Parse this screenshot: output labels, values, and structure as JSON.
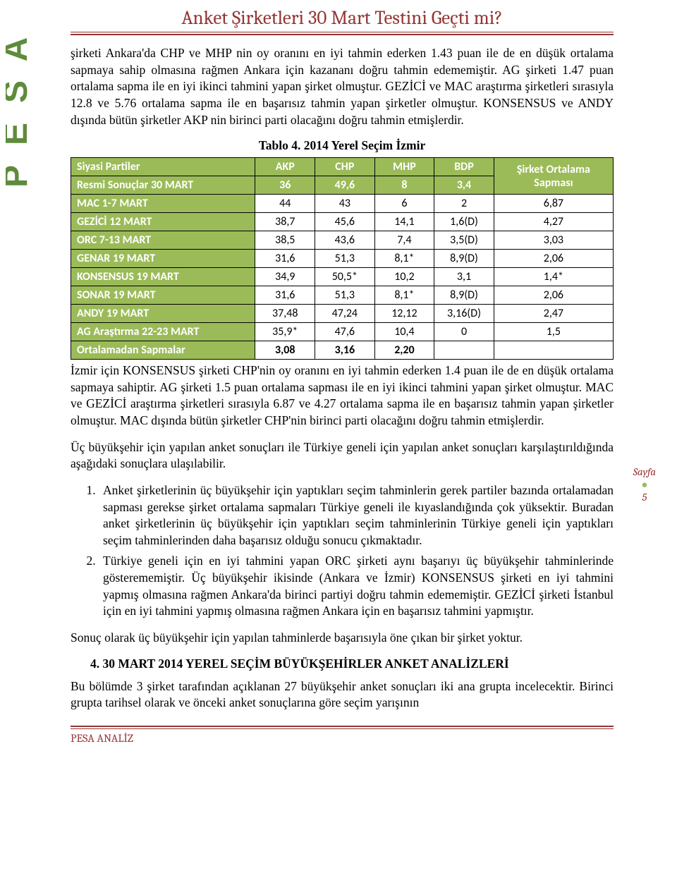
{
  "title": "Anket Şirketleri 30 Mart Testini Geçti mi?",
  "para1": "şirketi Ankara'da CHP ve MHP nin oy oranını en iyi tahmin ederken 1.43 puan ile de en düşük ortalama sapmaya sahip olmasına rağmen Ankara için kazananı doğru tahmin edememiştir. AG şirketi 1.47 puan ortalama sapma ile en iyi ikinci tahmini yapan şirket olmuştur. GEZİCİ ve MAC araştırma şirketleri sırasıyla 12.8 ve 5.76 ortalama sapma ile en başarısız tahmin yapan şirketler olmuştur. KONSENSUS ve ANDY dışında bütün şirketler AKP nin birinci parti olacağını doğru tahmin etmişlerdir.",
  "table_caption": "Tablo 4. 2014 Yerel Seçim İzmir",
  "table": {
    "header_row1": [
      "Siyasi Partiler",
      "AKP",
      "CHP",
      "MHP",
      "BDP",
      "Şirket Ortalama Sapması"
    ],
    "header_row2": [
      "Resmi Sonuçlar 30 MART",
      "36",
      "49,6",
      "8",
      "3,4"
    ],
    "rows": [
      [
        "MAC 1-7 MART",
        "44",
        "43",
        "6",
        "2",
        "6,87"
      ],
      [
        "GEZİCİ 12 MART",
        "38,7",
        "45,6",
        "14,1",
        "1,6(D)",
        "4,27"
      ],
      [
        "ORC 7-13 MART",
        "38,5",
        "43,6",
        "7,4",
        "3,5(D)",
        "3,03"
      ],
      [
        "GENAR 19 MART",
        "31,6",
        "51,3",
        "8,1*",
        "8,9(D)",
        "2,06"
      ],
      [
        "KONSENSUS 19 MART",
        "34,9",
        "50,5*",
        "10,2",
        "3,1",
        "1,4*"
      ],
      [
        "SONAR 19 MART",
        "31,6",
        "51,3",
        "8,1*",
        "8,9(D)",
        "2,06"
      ],
      [
        "ANDY 19 MART",
        "37,48",
        "47,24",
        "12,12",
        "3,16(D)",
        "2,47"
      ],
      [
        "AG Araştırma 22-23 MART",
        "35,9*",
        "47,6",
        "10,4",
        "0",
        "1,5"
      ],
      [
        "Ortalamadan Sapmalar",
        "3,08",
        "3,16",
        "2,20",
        "",
        ""
      ]
    ],
    "colors": {
      "header_bg": "#9bbb59",
      "header_fg": "#ffffff",
      "border": "#000000"
    },
    "col_widths_pct": [
      34,
      11,
      11,
      11,
      11,
      22
    ]
  },
  "para2": "İzmir için KONSENSUS şirketi CHP'nin oy oranını en iyi tahmin ederken 1.4 puan ile de en düşük ortalama sapmaya sahiptir. AG şirketi 1.5 puan ortalama sapması ile en iyi ikinci tahmini yapan şirket olmuştur. MAC ve GEZİCİ araştırma şirketleri sırasıyla 6.87 ve 4.27 ortalama sapma ile en başarısız tahmin yapan şirketler olmuştur. MAC dışında bütün şirketler CHP'nin birinci parti olacağını doğru tahmin etmişlerdir.",
  "para3": "Üç büyükşehir için yapılan anket sonuçları ile Türkiye geneli için yapılan anket sonuçları karşılaştırıldığında aşağıdaki sonuçlara ulaşılabilir.",
  "list": [
    "Anket şirketlerinin üç büyükşehir için yaptıkları seçim tahminlerin gerek partiler bazında ortalamadan sapması gerekse şirket ortalama sapmaları Türkiye geneli ile kıyaslandığında çok yüksektir. Buradan anket şirketlerinin üç büyükşehir için yaptıkları seçim tahminlerinin Türkiye geneli için yaptıkları seçim tahminlerinden daha başarısız olduğu sonucu çıkmaktadır.",
    "Türkiye geneli için en iyi tahmini yapan ORC şirketi aynı başarıyı üç büyükşehir tahminlerinde gösterememiştir. Üç büyükşehir ikisinde (Ankara ve İzmir) KONSENSUS şirketi en iyi tahmini yapmış olmasına rağmen Ankara'da birinci partiyi doğru tahmin edememiştir. GEZİCİ şirketi İstanbul için en iyi tahmini yapmış olmasına rağmen Ankara için en başarısız tahmini yapmıştır."
  ],
  "para4": "Sonuç olarak üç büyükşehir için yapılan tahminlerde başarısıyla öne çıkan bir şirket yoktur.",
  "section_head": "4.   30 MART 2014 YEREL SEÇİM BÜYÜKŞEHİRLER ANKET ANALİZLERİ",
  "para5": "Bu bölümde 3 şirket tarafından açıklanan 27 büyükşehir anket sonuçları iki ana grupta incelecektir. Birinci grupta tarihsel olarak ve önceki anket sonuçlarına göre seçim yarışının",
  "footer": "PESA ANALİZ",
  "page_label": "Sayfa",
  "page_num": "5",
  "logo_color": "#5f8b3c"
}
